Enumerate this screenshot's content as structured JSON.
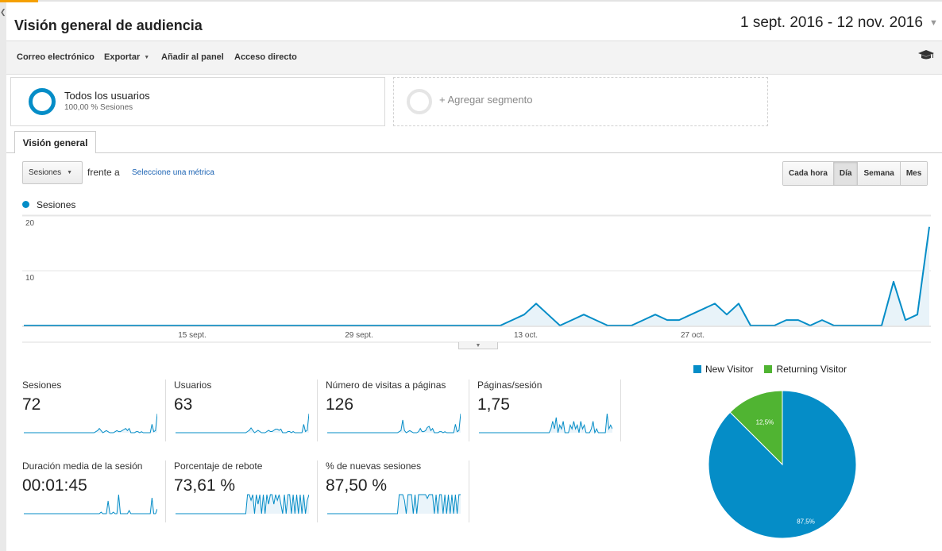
{
  "page": {
    "title": "Visión general de audiencia",
    "date_range": "1 sept. 2016 - 12 nov. 2016"
  },
  "toolbar": {
    "email": "Correo electrónico",
    "export": "Exportar",
    "add_to_dashboard": "Añadir al panel",
    "shortcut": "Acceso directo"
  },
  "segments": {
    "active": {
      "title": "Todos los usuarios",
      "subtitle": "100,00 % Sesiones"
    },
    "add": "+ Agregar segmento"
  },
  "tabs": {
    "overview": "Visión general"
  },
  "chart_controls": {
    "metric": "Sesiones",
    "versus": "frente a",
    "select_metric": "Seleccione una métrica",
    "periods": [
      "Cada hora",
      "Día",
      "Semana",
      "Mes"
    ],
    "active_period": "Día"
  },
  "colors": {
    "primary": "#058dc7",
    "new_visitor": "#058dc7",
    "returning_visitor": "#50b432"
  },
  "chart_data": [
    {
      "type": "area",
      "legend": [
        "Sesiones"
      ],
      "y_ticks": [
        10,
        20
      ],
      "ylim": [
        0,
        21
      ],
      "x_tick_labels": [
        {
          "label": "15 sept.",
          "index": 14
        },
        {
          "label": "29 sept.",
          "index": 28
        },
        {
          "label": "13 oct.",
          "index": 42
        },
        {
          "label": "27 oct.",
          "index": 56
        }
      ],
      "series": [
        {
          "name": "Sesiones",
          "values": [
            0,
            0,
            0,
            0,
            0,
            0,
            0,
            0,
            0,
            0,
            0,
            0,
            0,
            0,
            0,
            0,
            0,
            0,
            0,
            0,
            0,
            0,
            0,
            0,
            0,
            0,
            0,
            0,
            0,
            0,
            0,
            0,
            0,
            0,
            0,
            0,
            0,
            0,
            0,
            0,
            0,
            1,
            2,
            4,
            2,
            0,
            1,
            2,
            1,
            0,
            0,
            0,
            1,
            2,
            1,
            1,
            2,
            3,
            4,
            2,
            4,
            0,
            0,
            0,
            1,
            1,
            0,
            1,
            0,
            0,
            0,
            0,
            0,
            8,
            1,
            2,
            18
          ]
        }
      ]
    },
    {
      "type": "pie",
      "legend": [
        "New Visitor",
        "Returning Visitor"
      ],
      "slices": [
        {
          "name": "New Visitor",
          "value": 87.5,
          "label": "87,5%"
        },
        {
          "name": "Returning Visitor",
          "value": 12.5,
          "label": "12,5%"
        }
      ]
    }
  ],
  "metrics": [
    {
      "label": "Sesiones",
      "value": "72",
      "spark": [
        0,
        0,
        0,
        0,
        0,
        0,
        0,
        0,
        0,
        0,
        0,
        0,
        0,
        0,
        0,
        0,
        0,
        0,
        0,
        0,
        0,
        0,
        0,
        0,
        0,
        0,
        0,
        0,
        0,
        0,
        0,
        0,
        0,
        0,
        0,
        0,
        0,
        0,
        0,
        0,
        0,
        1,
        2,
        4,
        2,
        0,
        1,
        2,
        1,
        0,
        0,
        0,
        1,
        2,
        1,
        1,
        2,
        3,
        4,
        2,
        4,
        0,
        0,
        0,
        1,
        1,
        0,
        1,
        0,
        0,
        0,
        0,
        0,
        8,
        1,
        2,
        18
      ]
    },
    {
      "label": "Usuarios",
      "value": "63",
      "spark": [
        0,
        0,
        0,
        0,
        0,
        0,
        0,
        0,
        0,
        0,
        0,
        0,
        0,
        0,
        0,
        0,
        0,
        0,
        0,
        0,
        0,
        0,
        0,
        0,
        0,
        0,
        0,
        0,
        0,
        0,
        0,
        0,
        0,
        0,
        0,
        0,
        0,
        0,
        0,
        0,
        0,
        1,
        2,
        4,
        2,
        0,
        1,
        2,
        1,
        0,
        0,
        0,
        1,
        2,
        1,
        1,
        2,
        3,
        3,
        2,
        3,
        0,
        0,
        0,
        1,
        1,
        0,
        1,
        0,
        0,
        0,
        0,
        0,
        7,
        1,
        2,
        16
      ]
    },
    {
      "label": "Número de visitas a páginas",
      "value": "126",
      "spark": [
        0,
        0,
        0,
        0,
        0,
        0,
        0,
        0,
        0,
        0,
        0,
        0,
        0,
        0,
        0,
        0,
        0,
        0,
        0,
        0,
        0,
        0,
        0,
        0,
        0,
        0,
        0,
        0,
        0,
        0,
        0,
        0,
        0,
        0,
        0,
        0,
        0,
        0,
        0,
        0,
        0,
        1,
        2,
        12,
        2,
        0,
        1,
        2,
        1,
        0,
        0,
        0,
        1,
        4,
        1,
        1,
        2,
        5,
        6,
        2,
        4,
        0,
        0,
        0,
        1,
        1,
        0,
        1,
        0,
        0,
        0,
        0,
        0,
        8,
        1,
        2,
        18
      ]
    },
    {
      "label": "Páginas/sesión",
      "value": "1,75",
      "spark": [
        0,
        0,
        0,
        0,
        0,
        0,
        0,
        0,
        0,
        0,
        0,
        0,
        0,
        0,
        0,
        0,
        0,
        0,
        0,
        0,
        0,
        0,
        0,
        0,
        0,
        0,
        0,
        0,
        0,
        0,
        0,
        0,
        0,
        0,
        0,
        0,
        0,
        0,
        0,
        0,
        0,
        1,
        3,
        1,
        4,
        0,
        2,
        1,
        3,
        0,
        0,
        0,
        2,
        1,
        3,
        1,
        2,
        0,
        3,
        1,
        2,
        0,
        0,
        0,
        1,
        3,
        0,
        1,
        0,
        0,
        0,
        0,
        0,
        5,
        1,
        2,
        1
      ]
    },
    {
      "label": "Duración media de la sesión",
      "value": "00:01:45",
      "spark": [
        0,
        0,
        0,
        0,
        0,
        0,
        0,
        0,
        0,
        0,
        0,
        0,
        0,
        0,
        0,
        0,
        0,
        0,
        0,
        0,
        0,
        0,
        0,
        0,
        0,
        0,
        0,
        0,
        0,
        0,
        0,
        0,
        0,
        0,
        0,
        0,
        0,
        0,
        0,
        0,
        0,
        0,
        0,
        0,
        1,
        0,
        0,
        0,
        8,
        0,
        0,
        1,
        0,
        0,
        12,
        0,
        0,
        0,
        0,
        0,
        2,
        0,
        0,
        0,
        0,
        0,
        0,
        0,
        0,
        0,
        0,
        0,
        0,
        10,
        0,
        0,
        3
      ]
    },
    {
      "label": "Porcentaje de rebote",
      "value": "73,61 %",
      "spark": [
        0,
        0,
        0,
        0,
        0,
        0,
        0,
        0,
        0,
        0,
        0,
        0,
        0,
        0,
        0,
        0,
        0,
        0,
        0,
        0,
        0,
        0,
        0,
        0,
        0,
        0,
        0,
        0,
        0,
        0,
        0,
        0,
        0,
        0,
        0,
        0,
        0,
        0,
        0,
        0,
        0,
        10,
        10,
        7,
        10,
        0,
        10,
        5,
        10,
        0,
        10,
        0,
        10,
        5,
        10,
        10,
        5,
        10,
        7,
        10,
        5,
        0,
        10,
        0,
        10,
        10,
        0,
        10,
        0,
        10,
        0,
        10,
        0,
        10,
        0,
        7,
        10
      ]
    },
    {
      "label": "% de nuevas sesiones",
      "value": "87,50 %",
      "spark": [
        0,
        0,
        0,
        0,
        0,
        0,
        0,
        0,
        0,
        0,
        0,
        0,
        0,
        0,
        0,
        0,
        0,
        0,
        0,
        0,
        0,
        0,
        0,
        0,
        0,
        0,
        0,
        0,
        0,
        0,
        0,
        0,
        0,
        0,
        0,
        0,
        0,
        0,
        0,
        0,
        0,
        10,
        10,
        10,
        7,
        0,
        10,
        10,
        10,
        0,
        10,
        0,
        10,
        10,
        10,
        10,
        10,
        8,
        10,
        10,
        10,
        0,
        10,
        0,
        10,
        10,
        0,
        10,
        0,
        10,
        0,
        10,
        0,
        10,
        0,
        10,
        10
      ]
    }
  ]
}
